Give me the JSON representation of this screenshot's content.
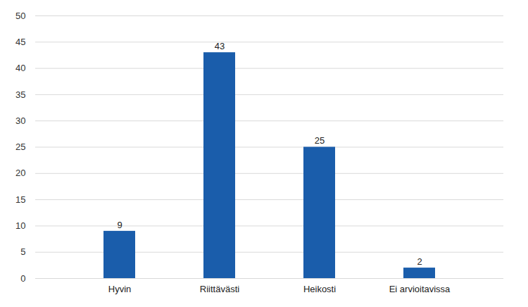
{
  "chart_data": {
    "type": "bar",
    "categories": [
      "Hyvin",
      "Riittävästi",
      "Heikosti",
      "Ei arvioitavissa"
    ],
    "values": [
      9,
      43,
      25,
      2
    ],
    "color": "#1a5dab",
    "ylim": [
      0,
      50
    ],
    "yticks": [
      0,
      5,
      10,
      15,
      20,
      25,
      30,
      35,
      40,
      45,
      50
    ],
    "grid": true,
    "data_labels": true
  }
}
